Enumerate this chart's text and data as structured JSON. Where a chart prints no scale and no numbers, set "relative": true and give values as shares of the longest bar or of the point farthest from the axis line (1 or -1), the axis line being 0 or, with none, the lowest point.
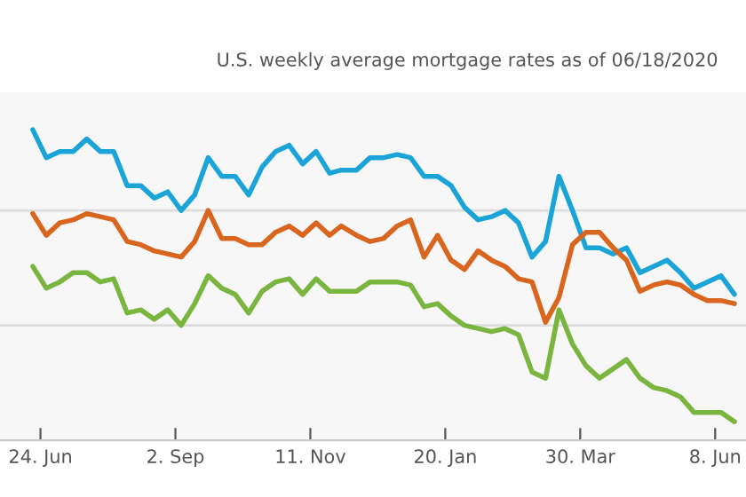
{
  "chart_data": {
    "type": "line",
    "subtitle": "U.S. weekly average mortgage rates as of 06/18/2020",
    "relative": true,
    "ref_lines": [
      {
        "axis": "y",
        "value": 0.37,
        "color": "#dddddd"
      },
      {
        "axis": "y",
        "value": 0.74,
        "color": "#dddddd"
      }
    ],
    "legend": false,
    "marker": "none",
    "line_style": "solid",
    "x": [
      "2019-06-20",
      "2019-06-27",
      "2019-07-04",
      "2019-07-11",
      "2019-07-18",
      "2019-07-25",
      "2019-08-01",
      "2019-08-08",
      "2019-08-15",
      "2019-08-22",
      "2019-08-29",
      "2019-09-05",
      "2019-09-12",
      "2019-09-19",
      "2019-09-26",
      "2019-10-03",
      "2019-10-10",
      "2019-10-17",
      "2019-10-24",
      "2019-10-31",
      "2019-11-07",
      "2019-11-14",
      "2019-11-21",
      "2019-11-27",
      "2019-12-05",
      "2019-12-12",
      "2019-12-19",
      "2019-12-26",
      "2020-01-02",
      "2020-01-09",
      "2020-01-16",
      "2020-01-23",
      "2020-01-30",
      "2020-02-06",
      "2020-02-13",
      "2020-02-20",
      "2020-02-27",
      "2020-03-05",
      "2020-03-12",
      "2020-03-19",
      "2020-03-26",
      "2020-04-02",
      "2020-04-09",
      "2020-04-16",
      "2020-04-23",
      "2020-04-30",
      "2020-05-07",
      "2020-05-14",
      "2020-05-21",
      "2020-05-28",
      "2020-06-04",
      "2020-06-11",
      "2020-06-18"
    ],
    "xlim": [
      "2019-06-03",
      "2020-06-24"
    ],
    "xticks": [
      {
        "value": "2019-06-24",
        "label": "24. Jun"
      },
      {
        "value": "2019-09-02",
        "label": "2. Sep"
      },
      {
        "value": "2019-11-11",
        "label": "11. Nov"
      },
      {
        "value": "2020-01-20",
        "label": "20. Jan"
      },
      {
        "value": "2020-03-30",
        "label": "30. Mar"
      },
      {
        "value": "2020-06-08",
        "label": "8. Jun"
      }
    ],
    "series": [
      {
        "color": "#1ba4d8",
        "values": [
          1.0,
          0.91,
          0.93,
          0.93,
          0.97,
          0.93,
          0.93,
          0.82,
          0.82,
          0.78,
          0.8,
          0.74,
          0.79,
          0.91,
          0.85,
          0.85,
          0.79,
          0.88,
          0.93,
          0.95,
          0.89,
          0.93,
          0.86,
          0.87,
          0.87,
          0.91,
          0.91,
          0.92,
          0.91,
          0.85,
          0.85,
          0.82,
          0.75,
          0.71,
          0.72,
          0.74,
          0.7,
          0.59,
          0.64,
          0.85,
          0.74,
          0.62,
          0.62,
          0.6,
          0.62,
          0.54,
          0.56,
          0.58,
          0.54,
          0.49,
          0.51,
          0.53,
          0.47
        ]
      },
      {
        "color": "#d9661f",
        "values": [
          0.73,
          0.66,
          0.7,
          0.71,
          0.73,
          0.72,
          0.71,
          0.64,
          0.63,
          0.61,
          0.6,
          0.59,
          0.64,
          0.74,
          0.65,
          0.65,
          0.63,
          0.63,
          0.67,
          0.69,
          0.66,
          0.7,
          0.66,
          0.69,
          0.66,
          0.64,
          0.65,
          0.69,
          0.71,
          0.59,
          0.66,
          0.58,
          0.55,
          0.61,
          0.58,
          0.56,
          0.52,
          0.51,
          0.38,
          0.46,
          0.63,
          0.67,
          0.67,
          0.62,
          0.58,
          0.48,
          0.5,
          0.51,
          0.5,
          0.47,
          0.45,
          0.45,
          0.44
        ]
      },
      {
        "color": "#7ab540",
        "values": [
          0.56,
          0.49,
          0.51,
          0.54,
          0.54,
          0.51,
          0.52,
          0.41,
          0.42,
          0.39,
          0.42,
          0.37,
          0.44,
          0.53,
          0.49,
          0.47,
          0.41,
          0.48,
          0.51,
          0.52,
          0.47,
          0.52,
          0.48,
          0.48,
          0.48,
          0.51,
          0.51,
          0.51,
          0.5,
          0.43,
          0.44,
          0.4,
          0.37,
          0.36,
          0.35,
          0.36,
          0.34,
          0.22,
          0.2,
          0.42,
          0.31,
          0.24,
          0.2,
          0.23,
          0.26,
          0.2,
          0.17,
          0.16,
          0.14,
          0.09,
          0.09,
          0.09,
          0.06
        ]
      }
    ]
  }
}
